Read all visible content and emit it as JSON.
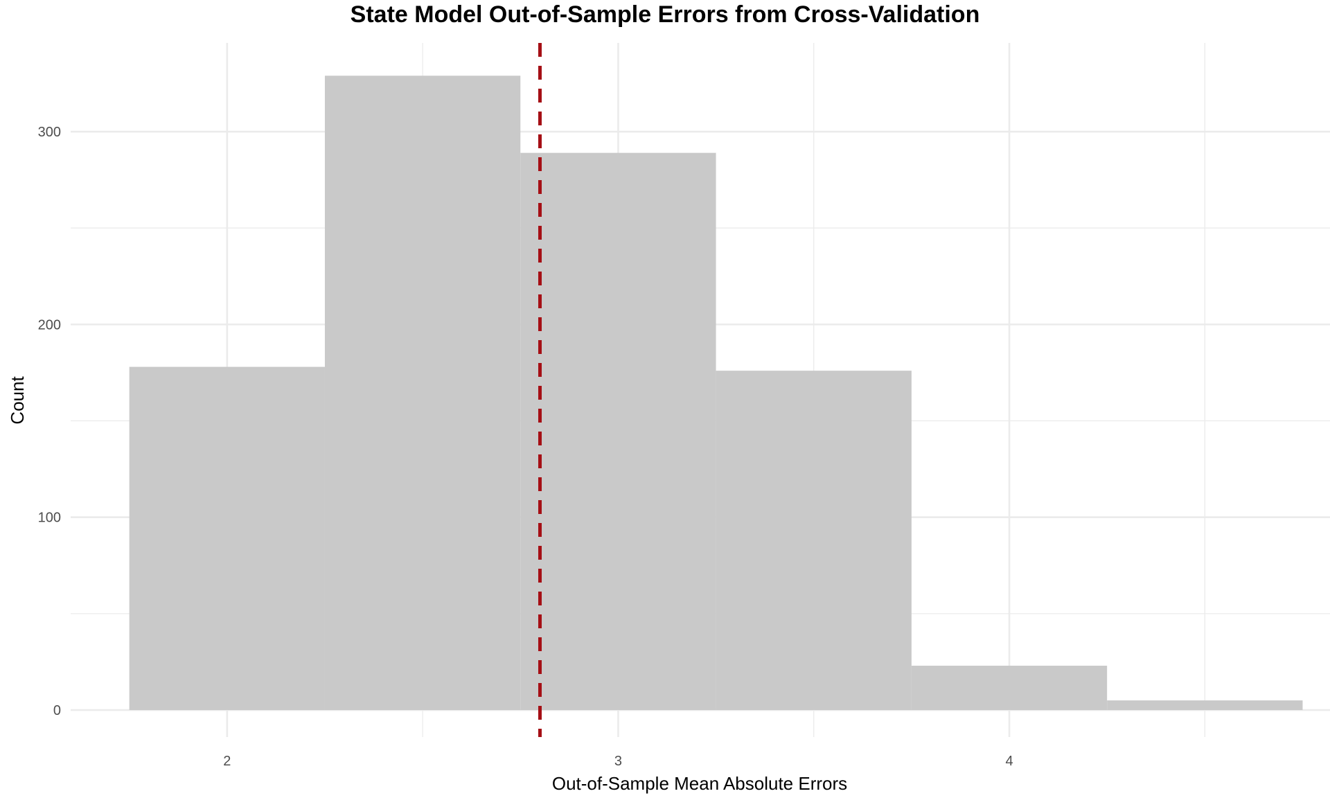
{
  "chart_data": {
    "type": "bar",
    "title": "State Model Out-of-Sample Errors from Cross-Validation",
    "xlabel": "Out-of-Sample Mean Absolute Errors",
    "ylabel": "Count",
    "bins": [
      {
        "x0": 1.75,
        "x1": 2.25,
        "count": 178
      },
      {
        "x0": 2.25,
        "x1": 2.75,
        "count": 329
      },
      {
        "x0": 2.75,
        "x1": 3.25,
        "count": 289
      },
      {
        "x0": 3.25,
        "x1": 3.75,
        "count": 176
      },
      {
        "x0": 3.75,
        "x1": 4.25,
        "count": 23
      },
      {
        "x0": 4.25,
        "x1": 4.75,
        "count": 5
      }
    ],
    "reference_line": {
      "x": 2.8,
      "style": "dashed",
      "color": "#a50f15"
    },
    "xlim": [
      1.6,
      4.82
    ],
    "ylim": [
      -14,
      346
    ],
    "x_ticks": [
      2,
      3,
      4
    ],
    "x_tick_labels": [
      "2",
      "3",
      "4"
    ],
    "x_minor": [
      2.5,
      3.5,
      4.5
    ],
    "y_ticks": [
      0,
      100,
      200,
      300
    ],
    "y_tick_labels": [
      "0",
      "100",
      "200",
      "300"
    ],
    "y_minor": [
      50,
      150,
      250
    ],
    "grid": true,
    "bar_color": "#c9c9c9",
    "grid_color": "#ebebeb"
  }
}
